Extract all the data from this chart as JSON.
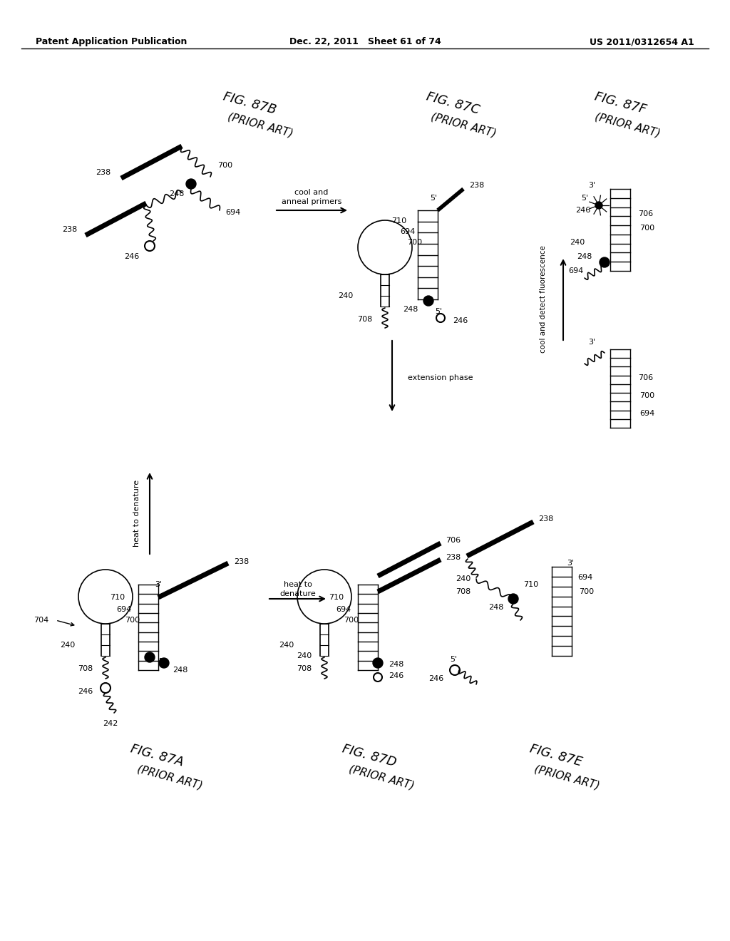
{
  "bg_color": "#ffffff",
  "header_left": "Patent Application Publication",
  "header_mid": "Dec. 22, 2011   Sheet 61 of 74",
  "header_right": "US 2011/0312654 A1"
}
